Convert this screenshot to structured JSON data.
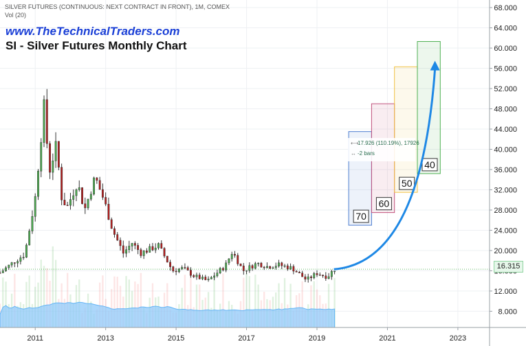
{
  "header": {
    "symbol_line": "SILVER FUTURES (CONTINUOUS: NEXT CONTRACT IN FRONT), 1M, COMEX",
    "vol_line": "Vol (20)",
    "website": "www.TheTechnicalTraders.com",
    "chart_title": "SI - Silver Futures Monthly Chart"
  },
  "measure_tool": {
    "price_change": "17.926 (110.19%), 17926",
    "bars": "-2 bars"
  },
  "current_price": "16.315",
  "colors": {
    "up": "#26a69a",
    "down": "#ef5350",
    "candle_up": "#4caf50",
    "candle_down": "#b71c1c",
    "volume_avg": "#90caf9",
    "arrow": "#1e88e5",
    "box_70": "#4a7bd0",
    "box_60": "#c0507a",
    "box_50": "#f0c040",
    "box_40": "#4caf50"
  },
  "chart_data": {
    "type": "candlestick",
    "title": "SI - Silver Futures Monthly Chart",
    "x_ticks": [
      "2011",
      "2013",
      "2015",
      "2017",
      "2019",
      "2021",
      "2023"
    ],
    "y_ticks": [
      "8.000",
      "12.000",
      "16.000",
      "20.000",
      "24.000",
      "28.000",
      "32.000",
      "36.000",
      "40.000",
      "44.000",
      "48.000",
      "52.000",
      "56.000",
      "60.000",
      "64.000",
      "68.000"
    ],
    "ylim": [
      4.8,
      69.5
    ],
    "xlim": [
      2010.0,
      2023.9
    ],
    "price_path": [
      [
        2010.0,
        15.6
      ],
      [
        2010.4,
        17.8
      ],
      [
        2010.7,
        19.2
      ],
      [
        2010.9,
        26.5
      ],
      [
        2011.0,
        30.5
      ],
      [
        2011.25,
        48.5
      ],
      [
        2011.4,
        35.5
      ],
      [
        2011.6,
        41.0
      ],
      [
        2011.75,
        30.5
      ],
      [
        2011.9,
        28.5
      ],
      [
        2012.2,
        33.5
      ],
      [
        2012.4,
        28.0
      ],
      [
        2012.7,
        34.5
      ],
      [
        2012.95,
        30.0
      ],
      [
        2013.2,
        24.0
      ],
      [
        2013.5,
        19.5
      ],
      [
        2013.75,
        21.5
      ],
      [
        2014.0,
        19.5
      ],
      [
        2014.5,
        21.0
      ],
      [
        2014.9,
        16.0
      ],
      [
        2015.2,
        16.5
      ],
      [
        2015.5,
        15.0
      ],
      [
        2015.9,
        14.0
      ],
      [
        2016.4,
        17.0
      ],
      [
        2016.6,
        19.8
      ],
      [
        2016.9,
        16.0
      ],
      [
        2017.3,
        17.5
      ],
      [
        2017.6,
        16.8
      ],
      [
        2017.9,
        17.2
      ],
      [
        2018.3,
        16.5
      ],
      [
        2018.7,
        14.2
      ],
      [
        2019.0,
        15.5
      ],
      [
        2019.3,
        14.8
      ],
      [
        2019.48,
        16.3
      ]
    ],
    "projection_boxes": [
      {
        "label": "70",
        "x_start": 2019.9,
        "x_end": 2020.55,
        "y_low": 25.0,
        "y_high": 43.5
      },
      {
        "label": "60",
        "x_start": 2020.55,
        "x_end": 2021.2,
        "y_low": 27.5,
        "y_high": 49.0
      },
      {
        "label": "50",
        "x_start": 2021.2,
        "x_end": 2021.85,
        "y_low": 31.5,
        "y_high": 56.3
      },
      {
        "label": "40",
        "x_start": 2021.85,
        "x_end": 2022.5,
        "y_low": 35.2,
        "y_high": 61.3
      }
    ],
    "projection_arrow": {
      "from": [
        2019.48,
        16.3
      ],
      "to": [
        2022.35,
        57.5
      ]
    },
    "current_price": 16.315
  }
}
